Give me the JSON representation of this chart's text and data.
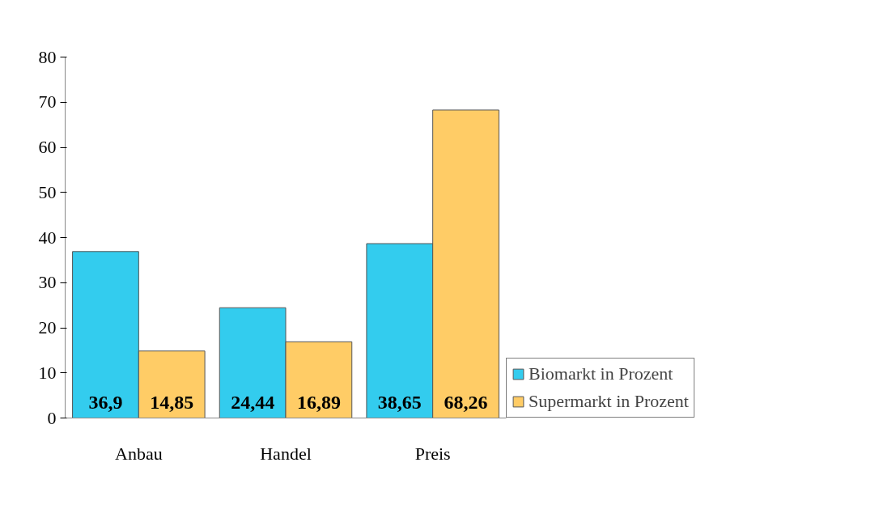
{
  "chart_data": {
    "type": "bar",
    "categories": [
      "Anbau",
      "Handel",
      "Preis"
    ],
    "series": [
      {
        "name": "Biomarkt in Prozent",
        "color": "#33ccee",
        "values": [
          36.9,
          24.44,
          38.65
        ],
        "value_labels": [
          "36,9",
          "24,44",
          "38,65"
        ]
      },
      {
        "name": "Supermarkt in Prozent",
        "color": "#ffcc66",
        "values": [
          14.85,
          16.89,
          68.26
        ],
        "value_labels": [
          "14,85",
          "16,89",
          "68,26"
        ]
      }
    ],
    "ylim": [
      0,
      80
    ],
    "yticks": [
      0,
      10,
      20,
      30,
      40,
      50,
      60,
      70,
      80
    ],
    "grid": false,
    "legend": "right"
  }
}
